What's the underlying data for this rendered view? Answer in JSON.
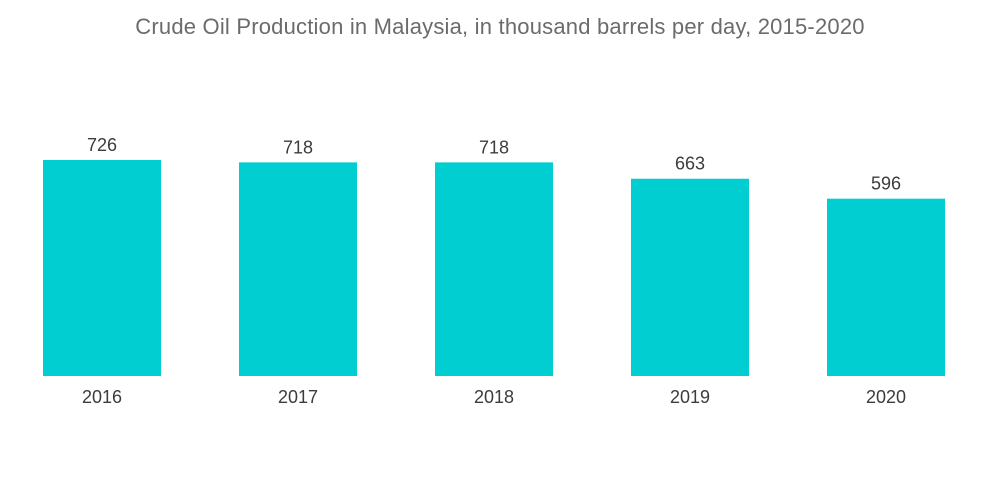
{
  "chart_data": {
    "type": "bar",
    "title": "Crude Oil Production in Malaysia, in thousand barrels per day, 2015-2020",
    "xlabel": "",
    "ylabel": "",
    "categories": [
      "2016",
      "2017",
      "2018",
      "2019",
      "2020"
    ],
    "values": [
      726,
      718,
      718,
      663,
      596
    ],
    "ylim": [
      0,
      726
    ],
    "grid": false,
    "legend": "none",
    "bar_color": "#00CED1",
    "text_color": "#3C3C3C",
    "title_color": "#6B6B6B"
  }
}
